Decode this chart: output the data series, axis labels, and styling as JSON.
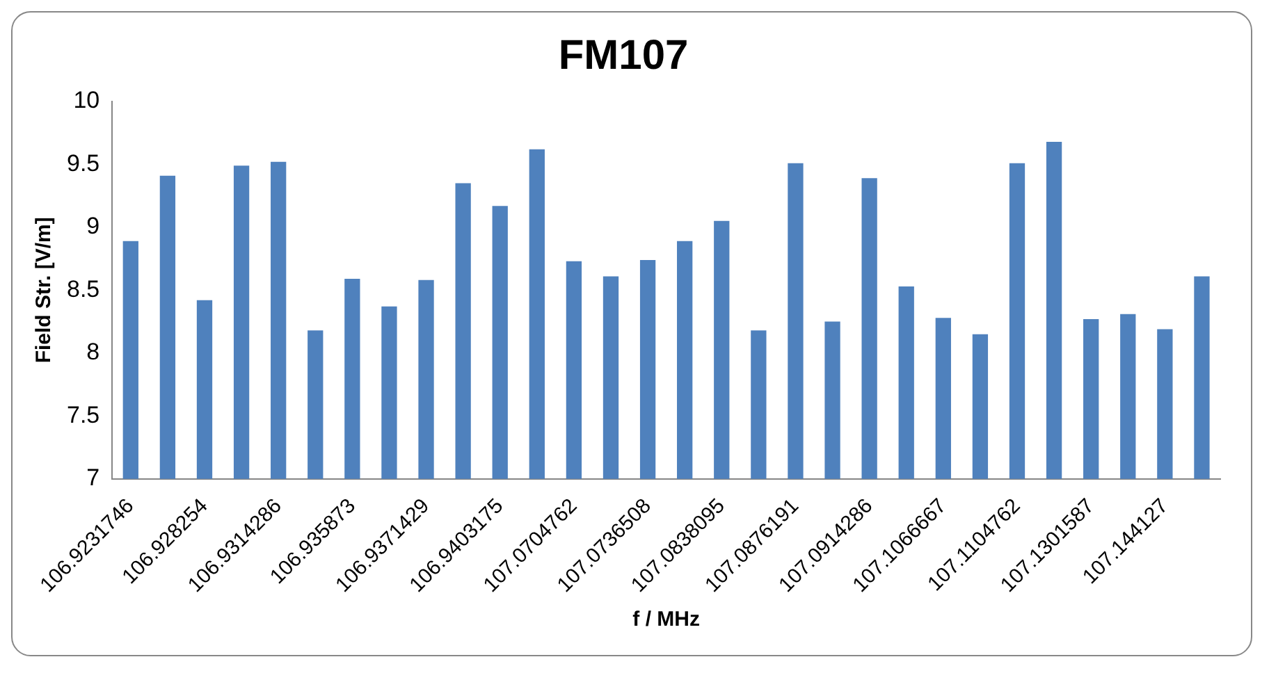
{
  "chart_data": {
    "type": "bar",
    "title": "FM107",
    "xlabel": "f / MHz",
    "ylabel": "Field Str. [V/m]",
    "categories": [
      "106.9231746",
      null,
      "106.928254",
      null,
      "106.9314286",
      null,
      "106.935873",
      null,
      "106.9371429",
      null,
      "106.9403175",
      null,
      "107.0704762",
      null,
      "107.0736508",
      null,
      "107.0838095",
      null,
      "107.0876191",
      null,
      "107.0914286",
      null,
      "107.1066667",
      null,
      "107.1104762",
      null,
      "107.1301587",
      null,
      "107.144127",
      null
    ],
    "values": [
      8.89,
      9.41,
      8.42,
      9.49,
      9.52,
      8.18,
      8.59,
      8.37,
      8.58,
      9.35,
      9.17,
      9.62,
      8.73,
      8.61,
      8.74,
      8.89,
      9.05,
      8.18,
      9.51,
      8.25,
      9.39,
      8.53,
      8.28,
      8.15,
      9.51,
      9.68,
      8.27,
      8.31,
      8.19,
      8.61
    ],
    "color": "#4f81bd",
    "ylim": [
      7,
      10
    ],
    "yticks": [
      7,
      7.5,
      8,
      8.5,
      9,
      9.5,
      10
    ],
    "grid": false,
    "legend": false
  }
}
